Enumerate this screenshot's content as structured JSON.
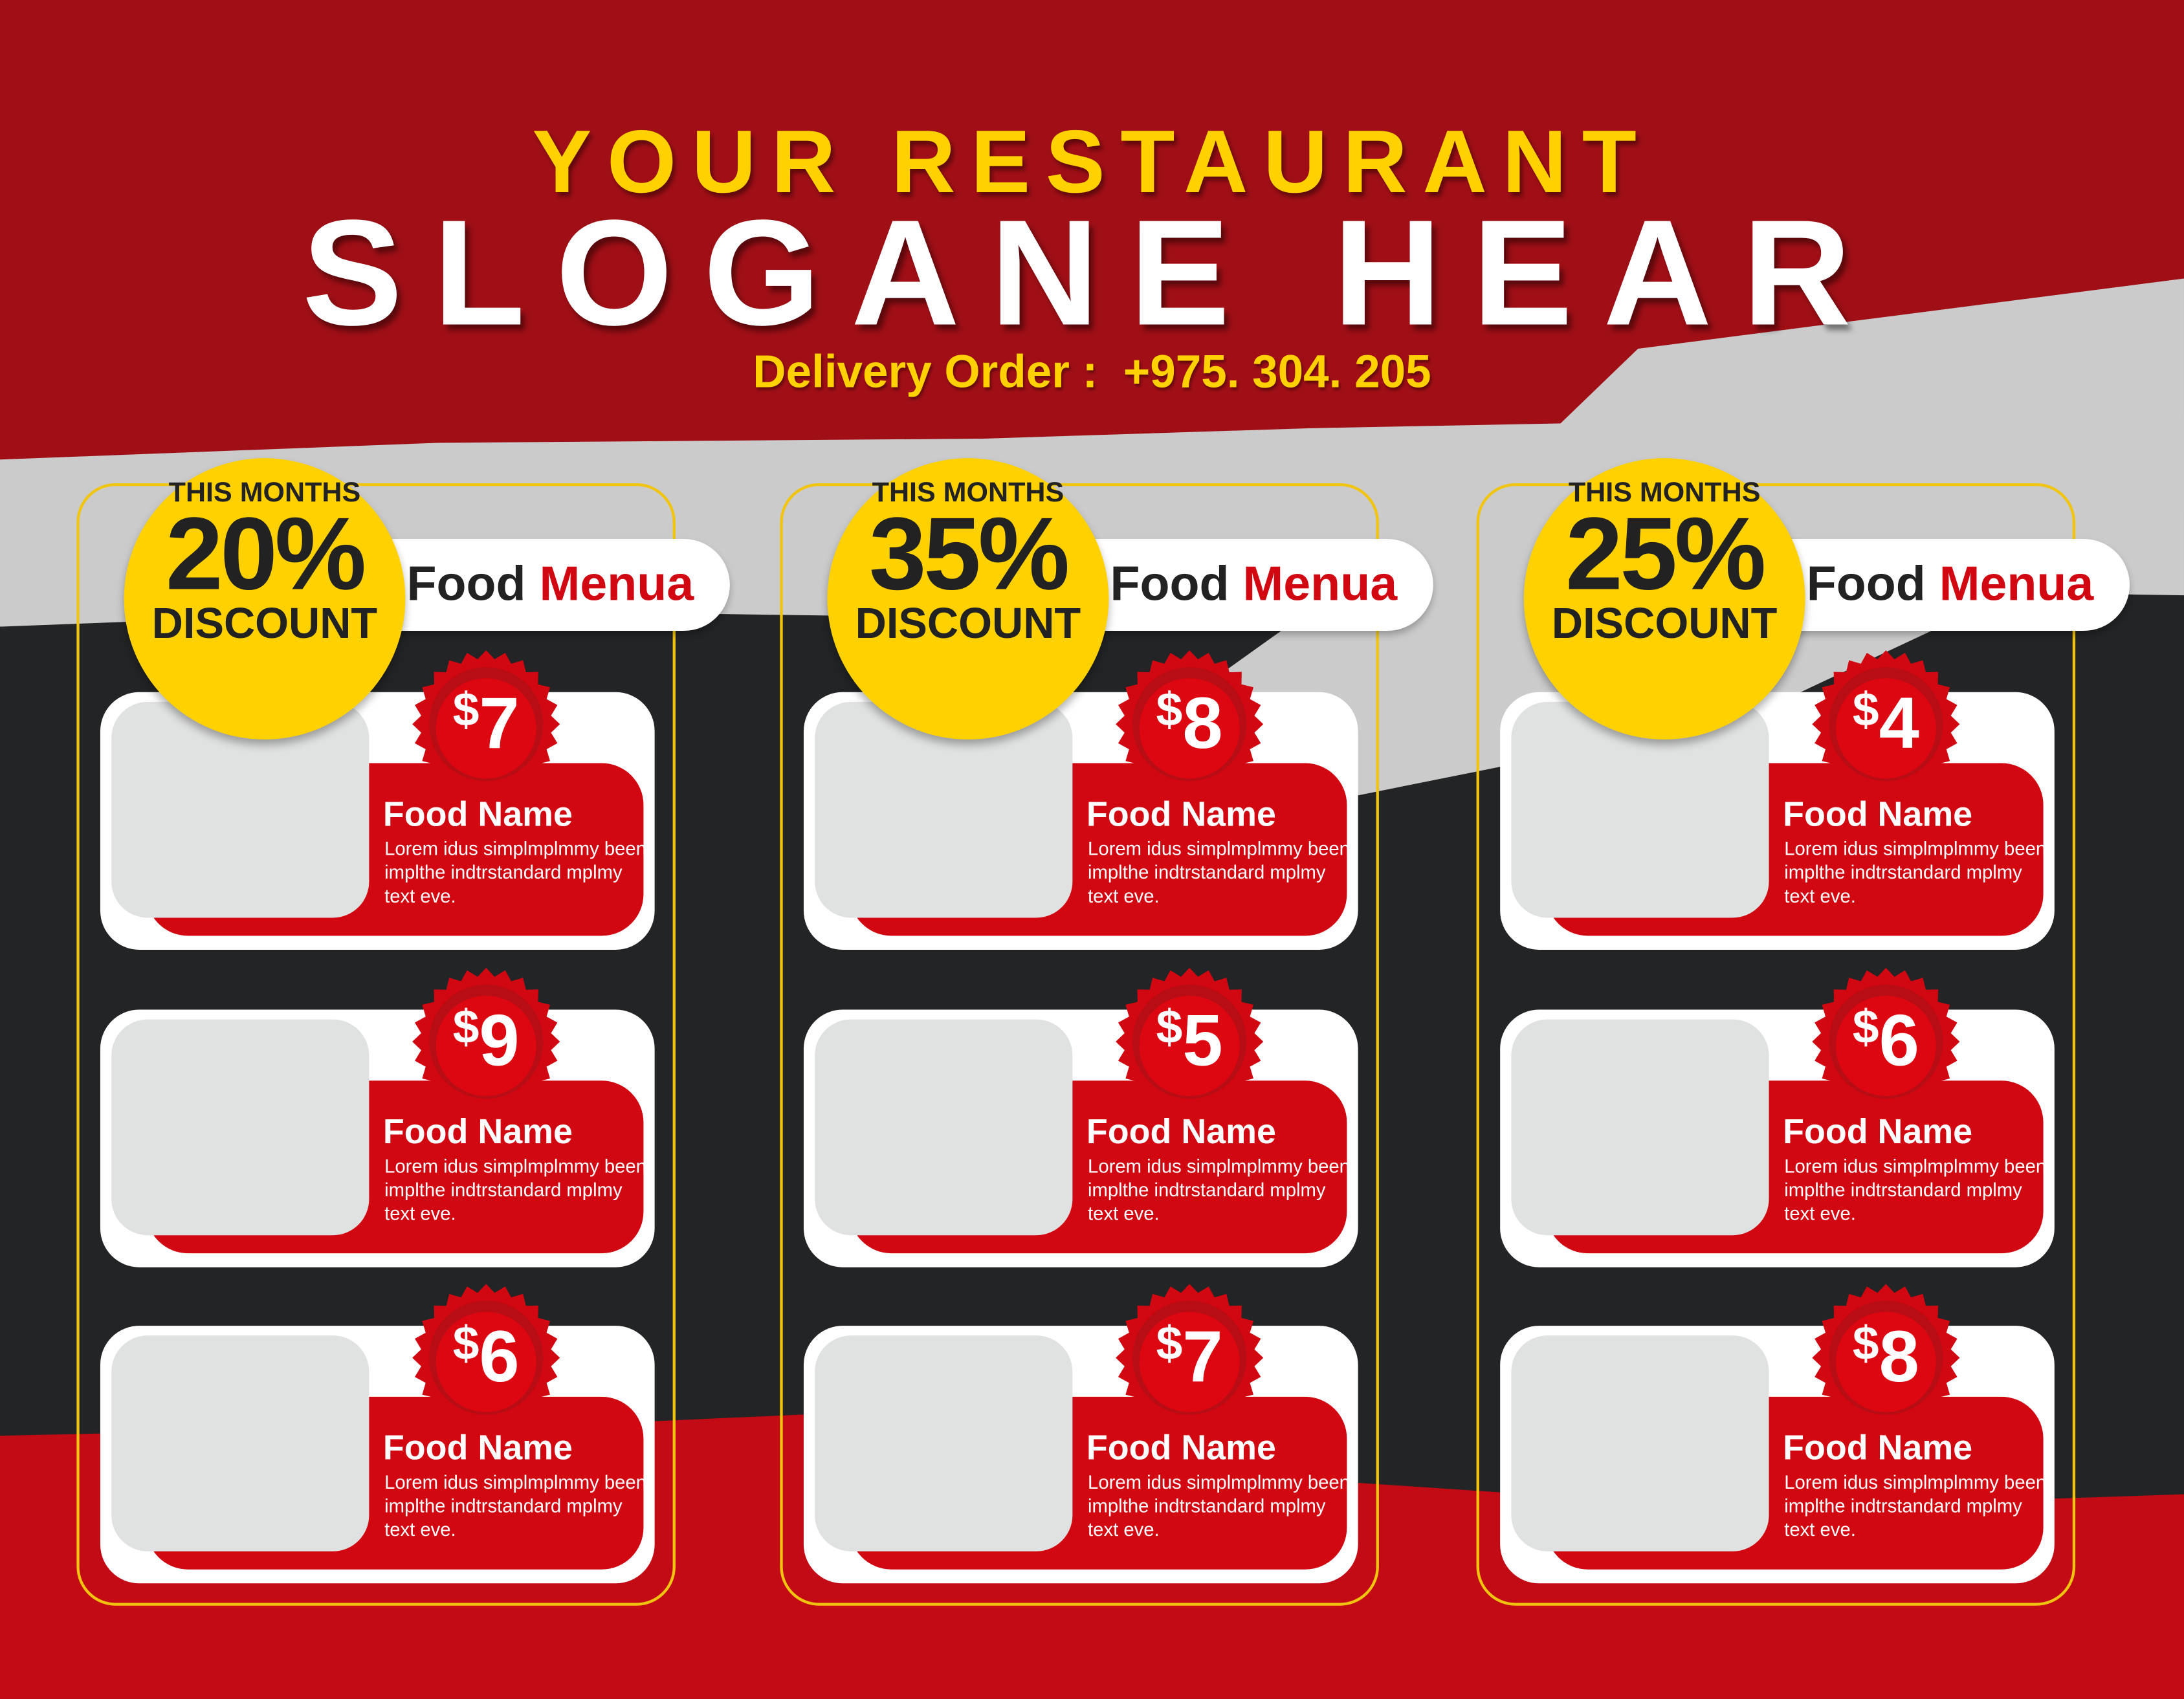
{
  "header": {
    "title": "YOUR RESTAURANT",
    "slogan": "SLOGANE HEAR",
    "delivery": "Delivery Order :  +975. 304. 205"
  },
  "colors": {
    "red": "#d10711",
    "dark_red": "#a00f16",
    "yellow": "#ffd100",
    "dark": "#222425",
    "grey": "#cbcbcb"
  },
  "columns": [
    {
      "discount_top": "THIS MONTHS",
      "discount_value": "20%",
      "discount_bottom": "DISCOUNT",
      "menu_word1": "Food",
      "menu_word2": "Menua",
      "items": [
        {
          "currency": "$",
          "price": "7",
          "name": "Food Name",
          "desc": "Lorem idus simplmplmmy been implthe indtrstandard mplmy text eve."
        },
        {
          "currency": "$",
          "price": "9",
          "name": "Food Name",
          "desc": "Lorem idus simplmplmmy been implthe indtrstandard mplmy text eve."
        },
        {
          "currency": "$",
          "price": "6",
          "name": "Food Name",
          "desc": "Lorem idus simplmplmmy been implthe indtrstandard mplmy text eve."
        }
      ]
    },
    {
      "discount_top": "THIS MONTHS",
      "discount_value": "35%",
      "discount_bottom": "DISCOUNT",
      "menu_word1": "Food",
      "menu_word2": "Menua",
      "items": [
        {
          "currency": "$",
          "price": "8",
          "name": "Food Name",
          "desc": "Lorem idus simplmplmmy been implthe indtrstandard mplmy text eve."
        },
        {
          "currency": "$",
          "price": "5",
          "name": "Food Name",
          "desc": "Lorem idus simplmplmmy been implthe indtrstandard mplmy text eve."
        },
        {
          "currency": "$",
          "price": "7",
          "name": "Food Name",
          "desc": "Lorem idus simplmplmmy been implthe indtrstandard mplmy text eve."
        }
      ]
    },
    {
      "discount_top": "THIS MONTHS",
      "discount_value": "25%",
      "discount_bottom": "DISCOUNT",
      "menu_word1": "Food",
      "menu_word2": "Menua",
      "items": [
        {
          "currency": "$",
          "price": "4",
          "name": "Food Name",
          "desc": "Lorem idus simplmplmmy been implthe indtrstandard mplmy text eve."
        },
        {
          "currency": "$",
          "price": "6",
          "name": "Food Name",
          "desc": "Lorem idus simplmplmmy been implthe indtrstandard mplmy text eve."
        },
        {
          "currency": "$",
          "price": "8",
          "name": "Food Name",
          "desc": "Lorem idus simplmplmmy been implthe indtrstandard mplmy text eve."
        }
      ]
    }
  ]
}
